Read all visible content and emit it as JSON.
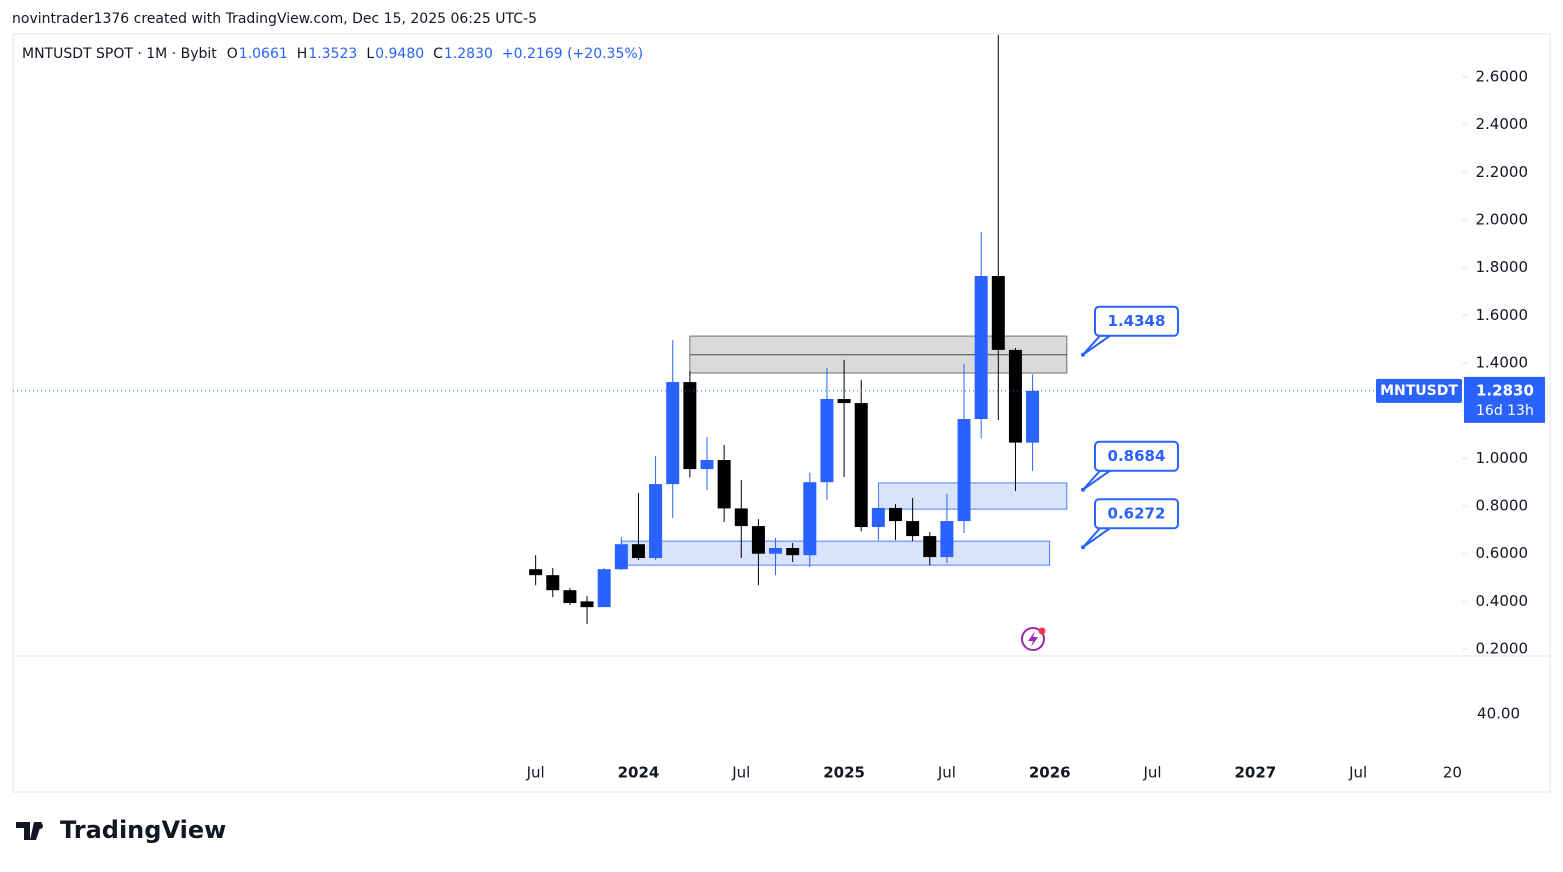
{
  "header": "novintrader1376 created with TradingView.com, Dec 15, 2025 06:25 UTC-5",
  "legend": {
    "symbol": "MNTUSDT SPOT · 1M · Bybit",
    "o_label": "O",
    "o": "1.0661",
    "h_label": "H",
    "h": "1.3523",
    "l_label": "L",
    "l": "0.9480",
    "c_label": "C",
    "c": "1.2830",
    "change": "+0.2169 (+20.35%)"
  },
  "chart_data": {
    "type": "candlestick",
    "up_color": "#2962ff",
    "down_color": "#000000",
    "open": [
      0.535,
      0.51,
      0.447,
      0.4,
      0.376,
      0.535,
      0.64,
      0.582,
      0.892,
      1.32,
      0.955,
      0.993,
      0.79,
      0.716,
      0.6,
      0.624,
      0.594,
      0.9,
      1.249,
      1.232,
      0.712,
      0.792,
      0.737,
      0.674,
      0.586,
      0.737,
      1.165,
      1.765,
      1.455,
      1.0661
    ],
    "high": [
      0.594,
      0.54,
      0.456,
      0.422,
      0.54,
      0.67,
      0.855,
      1.01,
      1.496,
      1.366,
      1.09,
      1.056,
      0.909,
      0.745,
      0.666,
      0.645,
      0.94,
      1.379,
      1.413,
      1.329,
      0.792,
      0.808,
      0.834,
      0.691,
      0.85,
      1.396,
      1.95,
      2.776,
      1.463,
      1.3523
    ],
    "low": [
      0.468,
      0.418,
      0.385,
      0.305,
      0.376,
      0.531,
      0.573,
      0.573,
      0.75,
      0.92,
      0.867,
      0.733,
      0.582,
      0.468,
      0.51,
      0.565,
      0.544,
      0.825,
      0.922,
      0.695,
      0.657,
      0.657,
      0.653,
      0.552,
      0.561,
      0.687,
      1.085,
      1.161,
      0.863,
      0.948
    ],
    "close": [
      0.51,
      0.447,
      0.393,
      0.376,
      0.535,
      0.64,
      0.582,
      0.892,
      1.32,
      0.955,
      0.993,
      0.79,
      0.716,
      0.6,
      0.624,
      0.594,
      0.9,
      1.249,
      1.232,
      0.712,
      0.792,
      0.737,
      0.674,
      0.586,
      0.737,
      1.165,
      1.765,
      1.455,
      1.0661,
      1.283
    ],
    "xlim": [
      -30.5,
      54.06
    ],
    "xticks": [
      {
        "value": 0,
        "label": "Jul"
      },
      {
        "value": 6,
        "label": "2024"
      },
      {
        "value": 12,
        "label": "Jul"
      },
      {
        "value": 18,
        "label": "2025"
      },
      {
        "value": 24,
        "label": "Jul"
      },
      {
        "value": 30,
        "label": "2026"
      },
      {
        "value": 36,
        "label": "Jul"
      },
      {
        "value": 42,
        "label": "2027"
      },
      {
        "value": 48,
        "label": "Jul"
      },
      {
        "value": 53.5,
        "label": "20"
      }
    ],
    "ylim": [
      0.171,
      2.78
    ],
    "yticks": [
      {
        "value": 0.2,
        "label": "0.2000"
      },
      {
        "value": 0.4,
        "label": "0.4000"
      },
      {
        "value": 0.6,
        "label": "0.6000"
      },
      {
        "value": 0.8,
        "label": "0.8000"
      },
      {
        "value": 1.0,
        "label": "1.0000"
      },
      {
        "value": 1.2,
        "label": "1.2000"
      },
      {
        "value": 1.4,
        "label": "1.4000"
      },
      {
        "value": 1.6,
        "label": "1.6000"
      },
      {
        "value": 1.8,
        "label": "1.8000"
      },
      {
        "value": 2.0,
        "label": "2.0000"
      },
      {
        "value": 2.2,
        "label": "2.2000"
      },
      {
        "value": 2.4,
        "label": "2.4000"
      },
      {
        "value": 2.6,
        "label": "2.6000"
      }
    ],
    "zones": [
      {
        "x0": 9,
        "x1": 31,
        "top": 1.513,
        "bottom": 1.358,
        "color": "#d1d1d1",
        "line": 1.4348
      },
      {
        "x0": 20,
        "x1": 31,
        "top": 0.897,
        "bottom": 0.787,
        "color": "#cfdcfb"
      },
      {
        "x0": 5,
        "x1": 30,
        "top": 0.653,
        "bottom": 0.552,
        "color": "#cfdcfb"
      }
    ],
    "callouts": [
      {
        "value": 1.4348,
        "label": "1.4348"
      },
      {
        "value": 0.8684,
        "label": "0.8684"
      },
      {
        "value": 0.6272,
        "label": "0.6272"
      }
    ],
    "price_tag": {
      "symbol": "MNTUSDT",
      "price": "1.2830",
      "countdown": "16d 13h"
    },
    "lower_pane_tick": "40.00"
  },
  "footer": "TradingView"
}
